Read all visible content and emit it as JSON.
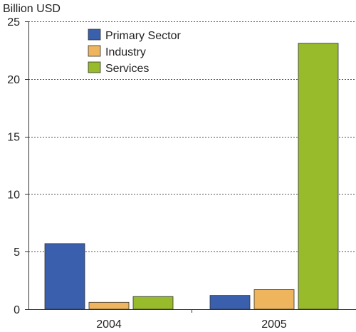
{
  "chart_data": {
    "type": "bar",
    "ylabel": "Billion USD",
    "ylim": [
      0,
      25
    ],
    "yticks": [
      0,
      5,
      10,
      15,
      20,
      25
    ],
    "grid": true,
    "legend_position": "top-left",
    "categories": [
      "2004",
      "2005"
    ],
    "series": [
      {
        "name": "Primary Sector",
        "color": "#3a5fad",
        "values": [
          5.7,
          1.2
        ]
      },
      {
        "name": "Industry",
        "color": "#efb55e",
        "values": [
          0.6,
          1.7
        ]
      },
      {
        "name": "Services",
        "color": "#97bb2b",
        "values": [
          1.1,
          23.1
        ]
      }
    ]
  }
}
